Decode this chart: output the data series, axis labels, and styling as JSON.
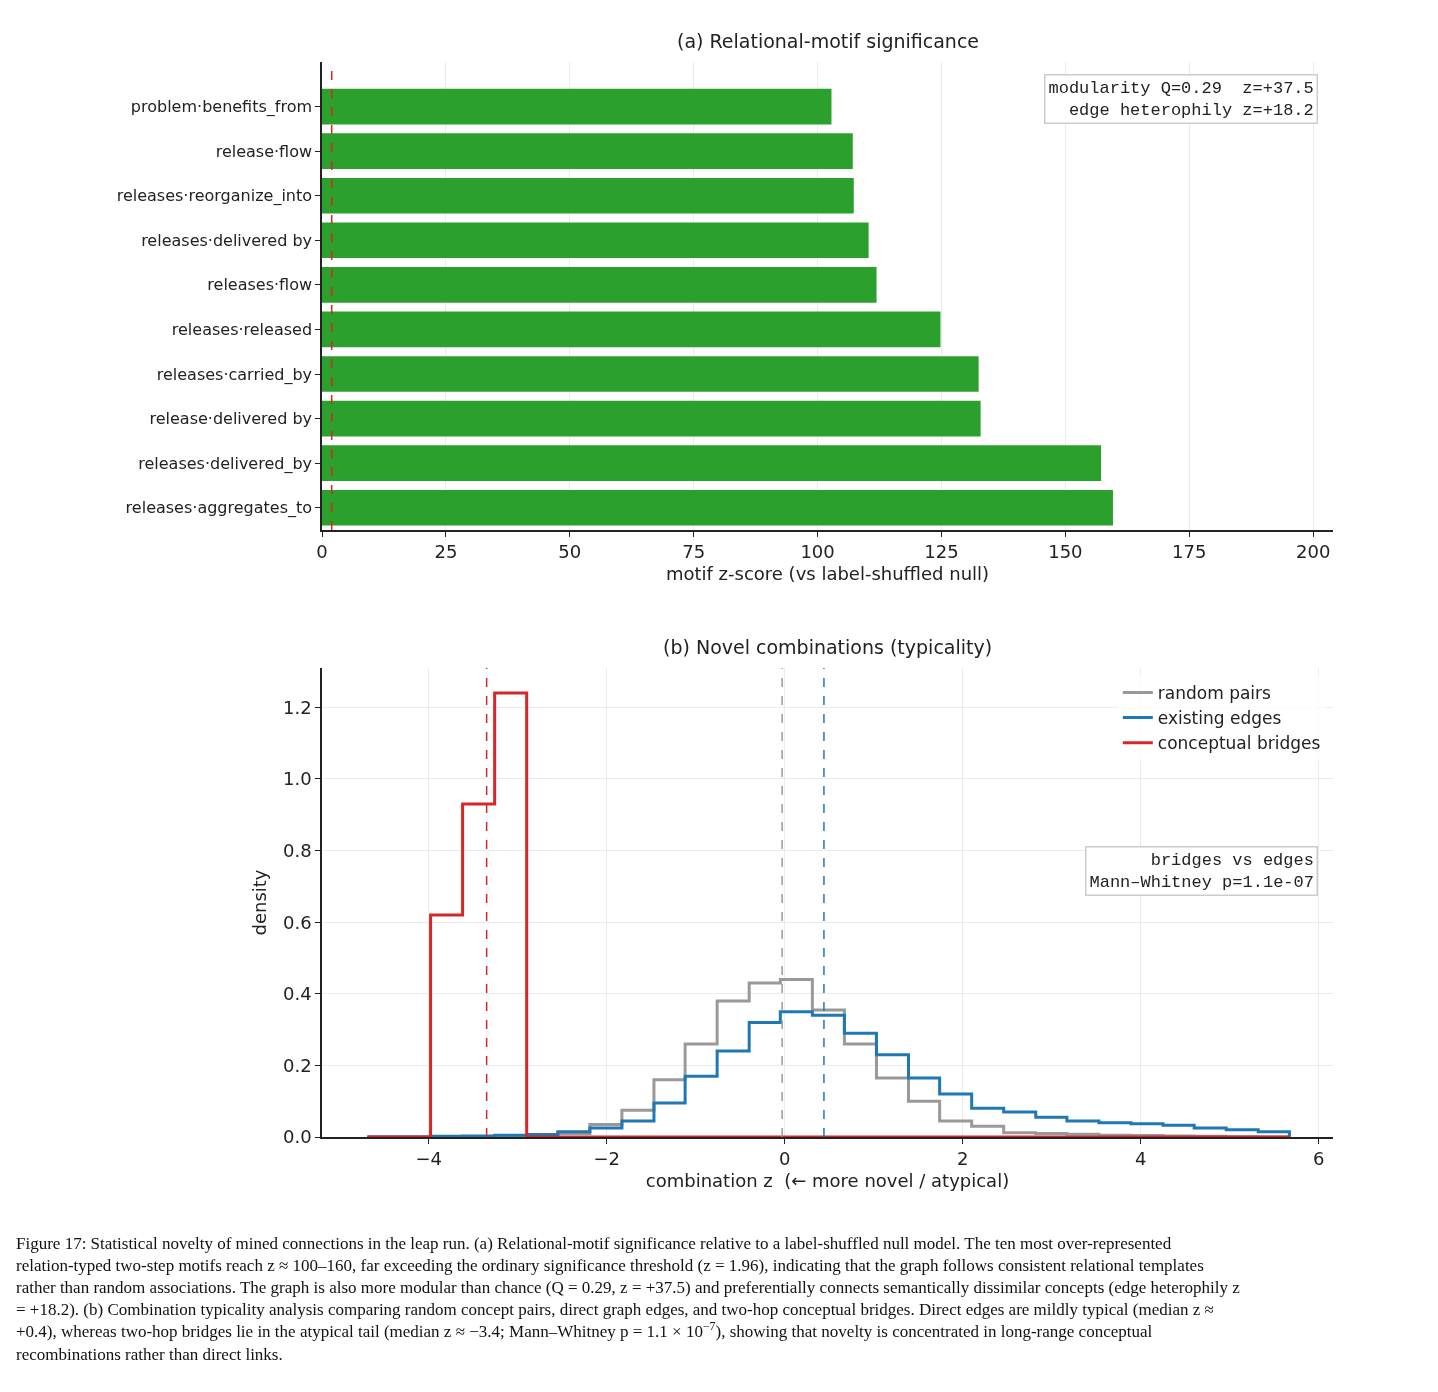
{
  "chart_data": [
    {
      "type": "bar",
      "orientation": "horizontal",
      "title": "(a) Relational-motif significance",
      "xlabel": "motif z-score (vs label-shuffled null)",
      "categories": [
        "problem·benefits_from",
        "release·flow",
        "releases·reorganize_into",
        "releases·delivered by",
        "releases·flow",
        "releases·released",
        "releases·carried_by",
        "release·delivered by",
        "releases·delivered_by",
        "releases·aggregates_to"
      ],
      "values": [
        102.8,
        107.1,
        107.3,
        110.3,
        111.9,
        124.8,
        132.5,
        132.9,
        157.2,
        159.6
      ],
      "color": "#2ca02c",
      "xlim": [
        0,
        204
      ],
      "xticks": [
        0,
        25,
        50,
        75,
        100,
        125,
        150,
        175,
        200
      ],
      "grid": "x",
      "ref_lines": [
        {
          "axis": "x",
          "value": 1.96,
          "color": "#d62728",
          "line_style": "dashed"
        }
      ],
      "annotations": [
        "modularity Q=0.29  z=+37.5\n  edge heterophily z=+18.2"
      ]
    },
    {
      "type": "histogram",
      "title": "(b) Novel combinations (typicality)",
      "xlabel": "combination z  (← more novel / atypical)",
      "ylabel": "density",
      "bins": [
        -4.69,
        -4.33,
        -3.98,
        -3.62,
        -3.26,
        -2.9,
        -2.55,
        -2.19,
        -1.83,
        -1.47,
        -1.12,
        -0.76,
        -0.4,
        -0.05,
        0.31,
        0.67,
        1.03,
        1.39,
        1.74,
        2.1,
        2.46,
        2.82,
        3.17,
        3.53,
        3.89,
        4.25,
        4.6,
        4.96,
        5.32,
        5.67
      ],
      "series": [
        {
          "name": "random pairs",
          "color": "#999999",
          "values": [
            0,
            0,
            0,
            0,
            0,
            0,
            0.01,
            0.035,
            0.075,
            0.16,
            0.26,
            0.38,
            0.43,
            0.44,
            0.355,
            0.26,
            0.165,
            0.1,
            0.045,
            0.03,
            0.012,
            0.01,
            0.008,
            0.005,
            0.004,
            0.003,
            0.002,
            0.001,
            0
          ]
        },
        {
          "name": "existing edges",
          "color": "#1f77b4",
          "values": [
            0,
            0,
            0.002,
            0.003,
            0.005,
            0.007,
            0.015,
            0.025,
            0.045,
            0.095,
            0.17,
            0.24,
            0.32,
            0.35,
            0.34,
            0.29,
            0.23,
            0.165,
            0.12,
            0.08,
            0.07,
            0.055,
            0.045,
            0.04,
            0.037,
            0.033,
            0.025,
            0.02,
            0.015
          ]
        },
        {
          "name": "conceptual bridges",
          "color": "#d62728",
          "values": [
            0,
            0,
            0.62,
            0.93,
            1.24,
            0,
            0,
            0,
            0,
            0,
            0,
            0,
            0,
            0,
            0,
            0,
            0,
            0,
            0,
            0,
            0,
            0,
            0,
            0,
            0,
            0,
            0,
            0,
            0
          ]
        }
      ],
      "xlim": [
        -5.2,
        6.16
      ],
      "xticks": [
        {
          "value": -4,
          "label": "−4"
        },
        {
          "value": -2,
          "label": "−2"
        },
        0,
        2,
        4,
        6
      ],
      "ylim": [
        0,
        1.31
      ],
      "yticks": [
        {
          "value": 0,
          "label": "0.0"
        },
        0.2,
        0.4,
        0.6,
        0.8,
        {
          "value": 1,
          "label": "1.0"
        },
        1.2
      ],
      "grid": true,
      "legend": "top right",
      "ref_lines": [
        {
          "axis": "x",
          "value": -0.03,
          "color": "#999999",
          "line_style": "dashed"
        },
        {
          "axis": "x",
          "value": 0.44,
          "color": "#1f77b4",
          "line_style": "dashed"
        },
        {
          "axis": "x",
          "value": -3.35,
          "color": "#d62728",
          "line_style": "dashed"
        }
      ],
      "annotations": [
        "bridges vs edges\nMann–Whitney p=1.1e-07",
        "Figure 17: Statistical novelty of mined connections in the leap run. (a) Relational-motif significance relative to a label-shuffled null model. The ten most over-represented relation-typed two-step motifs reach z ≈ 100–160, far exceeding the ordinary significance threshold (z = 1.96), indicating that the graph follows consistent relational templates rather than random associations. The graph is also more modular than chance (Q = 0.29, z = +37.5) and preferentially connects semantically dissimilar concepts (edge heterophily z = +18.2). (b) Combination typicality analysis comparing random concept pairs, direct graph edges, and two-hop conceptual bridges. Direct edges are mildly typical (median z ≈ +0.4), whereas two-hop bridges lie in the atypical tail (median z ≈ −3.4; Mann–Whitney p = 1.1 × 10$^{−7}$), showing that novelty is concentrated in long-range conceptual recombinations rather than direct links."
      ]
    }
  ]
}
